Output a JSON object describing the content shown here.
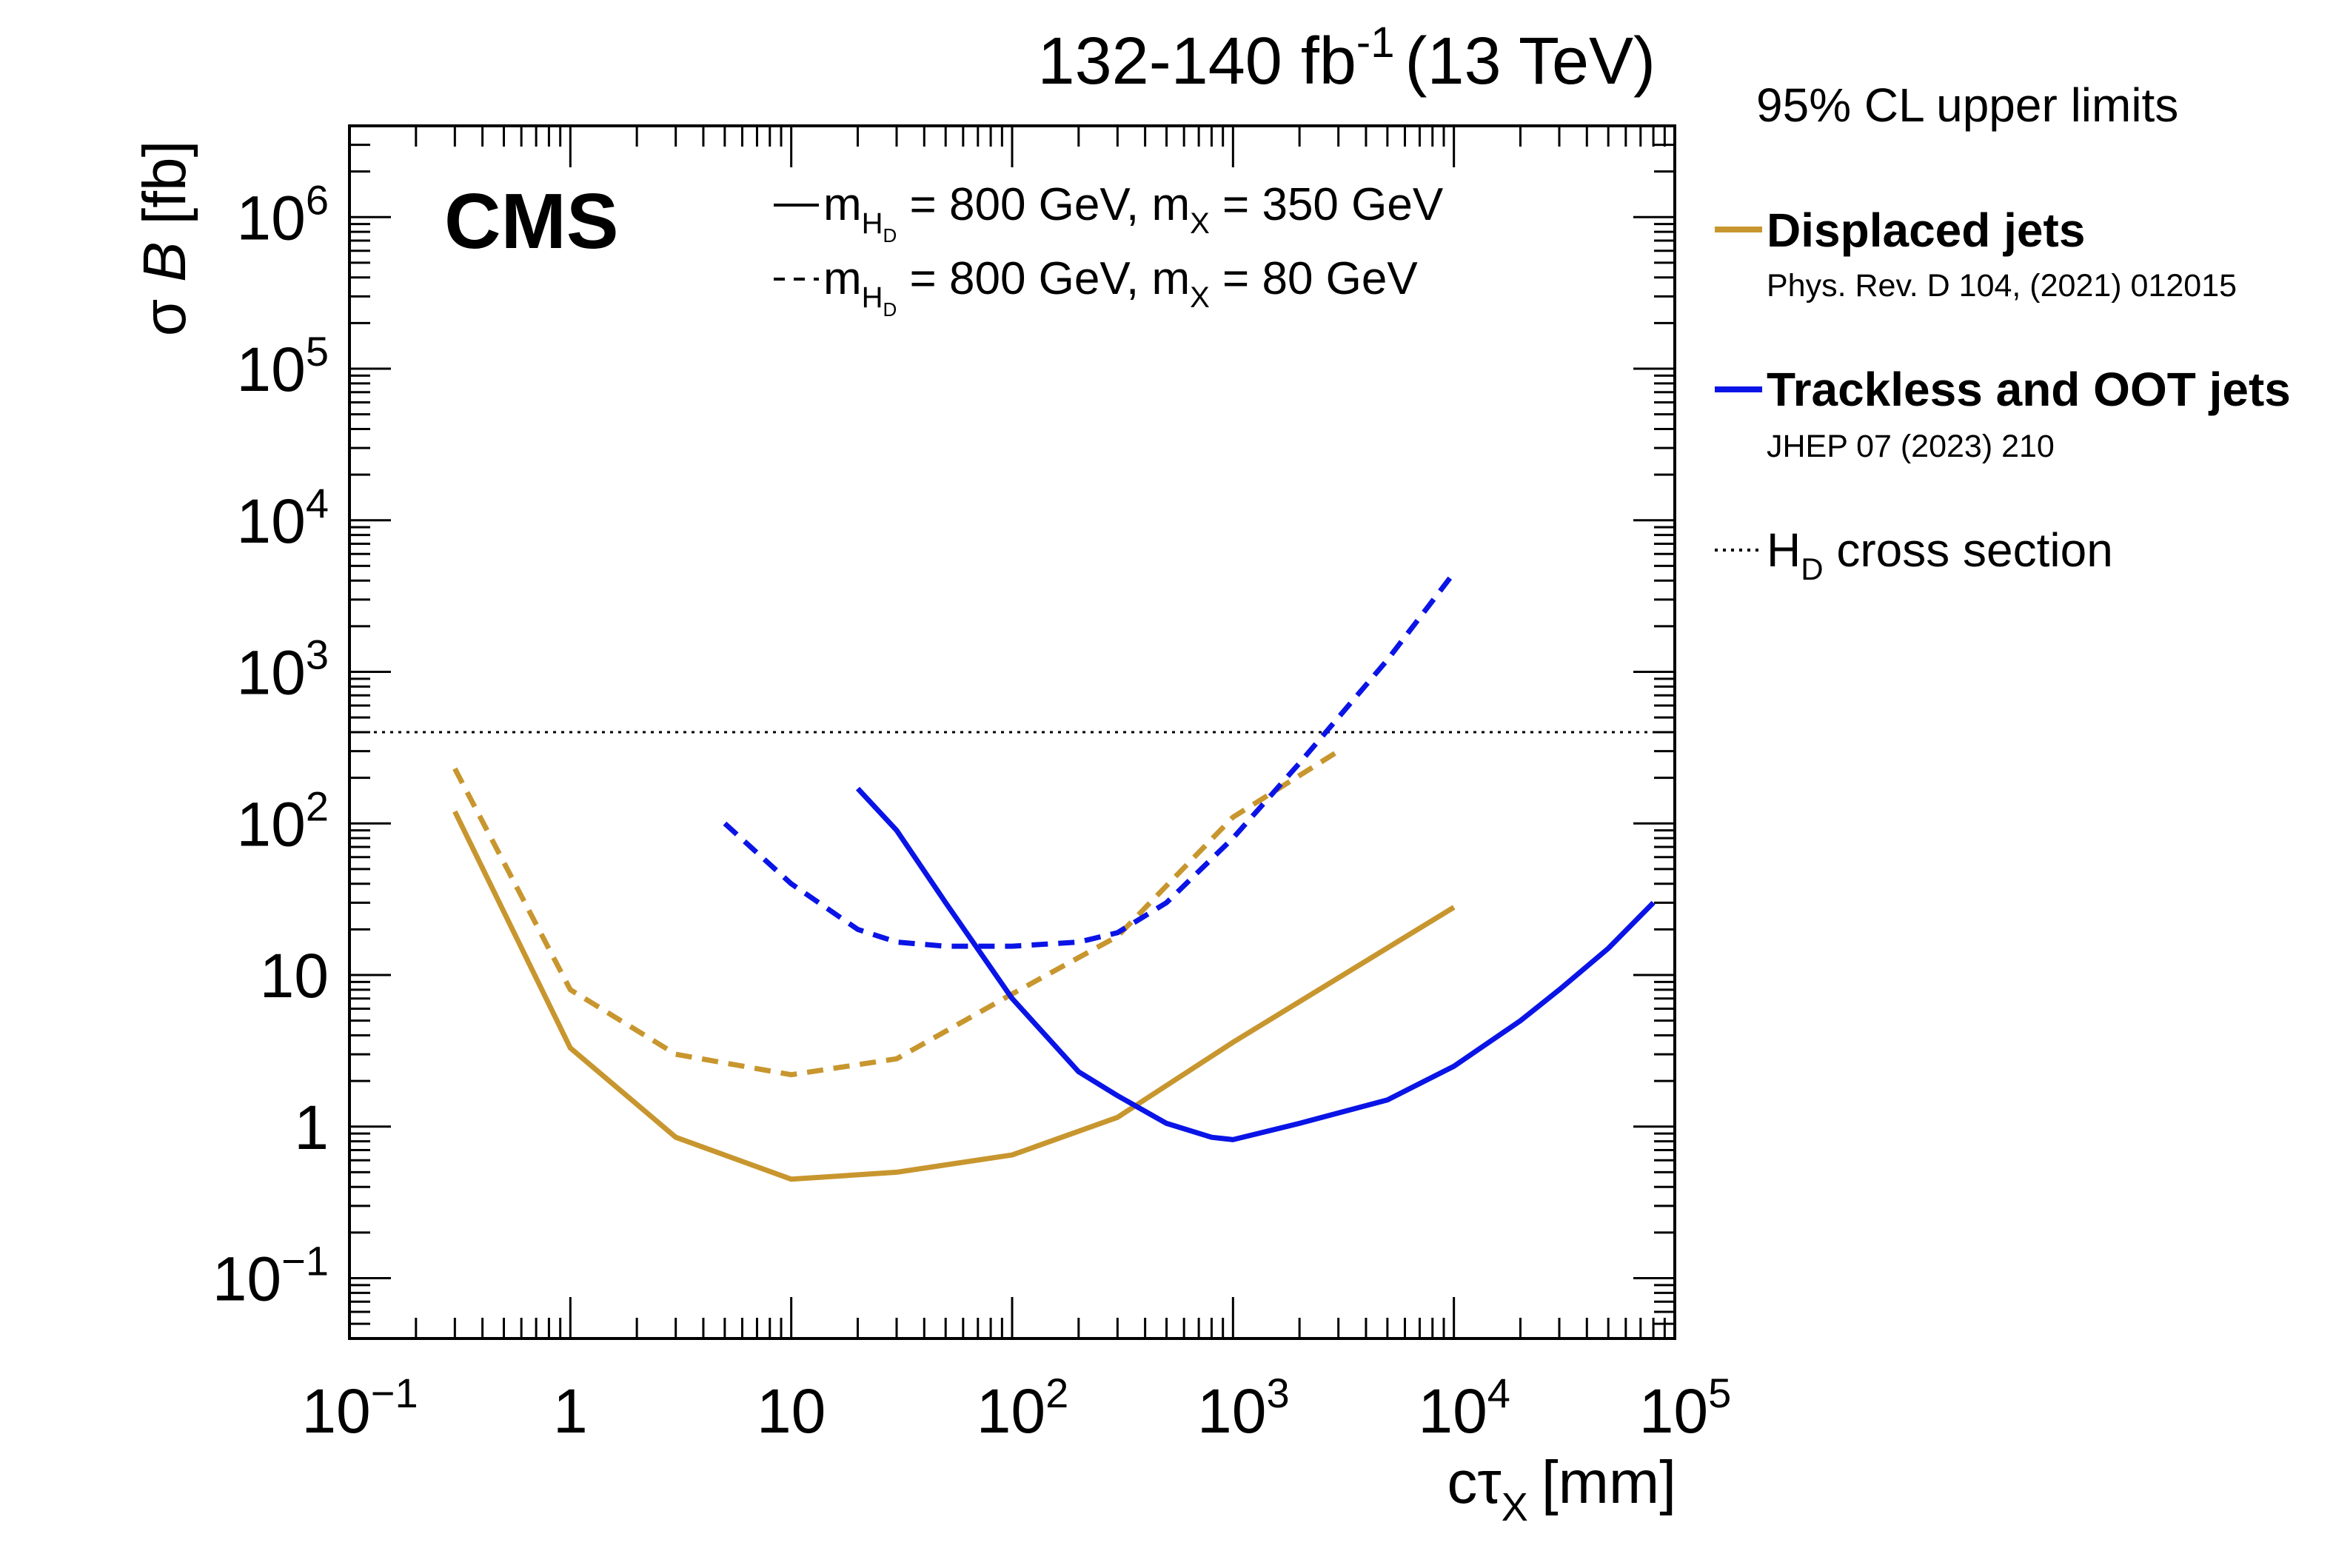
{
  "chart_data": {
    "type": "line",
    "title": {
      "lumi": "132-140",
      "lumi_unit": "fb",
      "lumi_exp": "-1",
      "energy": "(13 TeV)"
    },
    "experiment_label": "CMS",
    "ylabel": {
      "sigma": "σ",
      "b": "B",
      "unit": "[fb]"
    },
    "xlabel": {
      "ctau": "cτ",
      "sub": "X",
      "unit": "[mm]"
    },
    "xscale": "log",
    "yscale": "log",
    "xlim": [
      0.1,
      100000
    ],
    "ylim": [
      0.04,
      4000000
    ],
    "x_ticks": [
      {
        "value": 0.1,
        "base": "10",
        "exp": "−1"
      },
      {
        "value": 1,
        "base": "1",
        "exp": ""
      },
      {
        "value": 10,
        "base": "10",
        "exp": ""
      },
      {
        "value": 100,
        "base": "10",
        "exp": "2"
      },
      {
        "value": 1000,
        "base": "10",
        "exp": "3"
      },
      {
        "value": 10000,
        "base": "10",
        "exp": "4"
      },
      {
        "value": 100000,
        "base": "10",
        "exp": "5"
      }
    ],
    "y_ticks": [
      {
        "value": 0.1,
        "base": "10",
        "exp": "−1"
      },
      {
        "value": 1,
        "base": "1",
        "exp": ""
      },
      {
        "value": 10,
        "base": "10",
        "exp": ""
      },
      {
        "value": 100,
        "base": "10",
        "exp": "2"
      },
      {
        "value": 1000,
        "base": "10",
        "exp": "3"
      },
      {
        "value": 10000,
        "base": "10",
        "exp": "4"
      },
      {
        "value": 100000,
        "base": "10",
        "exp": "5"
      },
      {
        "value": 1000000,
        "base": "10",
        "exp": "6"
      }
    ],
    "mass_legend": [
      {
        "style": "solid",
        "m": "m",
        "h": "H",
        "d": "D",
        "text1": " = 800 GeV, m",
        "x": "X",
        "text2": " = 350 GeV"
      },
      {
        "style": "dashed",
        "m": "m",
        "h": "H",
        "d": "D",
        "text1": " = 800 GeV, m",
        "x": "X",
        "text2": " = 80 GeV"
      }
    ],
    "legend": {
      "heading": "95% CL upper limits",
      "entries": [
        {
          "label": "Displaced jets",
          "reference": "Phys. Rev. D 104, (2021) 012015",
          "color": "#c8962e"
        },
        {
          "label": "Trackless and OOT jets",
          "reference": "JHEP 07 (2023) 210",
          "color": "#0a14e6"
        }
      ],
      "xsec": {
        "h": "H",
        "sub": "D",
        "text": " cross section"
      }
    },
    "reference_line": {
      "name": "HD cross section",
      "value": 400
    },
    "series": [
      {
        "name": "Displaced jets, mX = 350 GeV",
        "color": "#c8962e",
        "style": "solid",
        "x": [
          0.3,
          1,
          3,
          10,
          30,
          100,
          300,
          1000,
          10000
        ],
        "y": [
          120,
          3.3,
          0.85,
          0.45,
          0.5,
          0.65,
          1.15,
          3.6,
          28
        ]
      },
      {
        "name": "Displaced jets, mX = 80 GeV",
        "color": "#c8962e",
        "style": "dashed",
        "x": [
          0.3,
          1,
          3,
          10,
          30,
          100,
          300,
          1000,
          3000
        ],
        "y": [
          230,
          8,
          3,
          2.2,
          2.8,
          7.5,
          18,
          110,
          300
        ]
      },
      {
        "name": "Trackless and OOT jets, mX = 350 GeV",
        "color": "#0a14e6",
        "style": "solid",
        "x": [
          20,
          30,
          50,
          100,
          200,
          300,
          500,
          800,
          1000,
          2000,
          5000,
          10000,
          20000,
          30000,
          50000,
          80000
        ],
        "y": [
          170,
          90,
          30,
          7,
          2.3,
          1.6,
          1.05,
          0.85,
          0.82,
          1.05,
          1.5,
          2.5,
          5,
          8,
          15,
          30
        ]
      },
      {
        "name": "Trackless and OOT jets, mX = 80 GeV",
        "color": "#0a14e6",
        "style": "dashed",
        "x": [
          5,
          10,
          20,
          30,
          50,
          100,
          200,
          300,
          500,
          1000,
          2000,
          5000,
          10000
        ],
        "y": [
          100,
          40,
          20,
          16.5,
          15.5,
          15.5,
          16.5,
          19,
          30,
          80,
          250,
          1200,
          4500
        ]
      }
    ]
  }
}
